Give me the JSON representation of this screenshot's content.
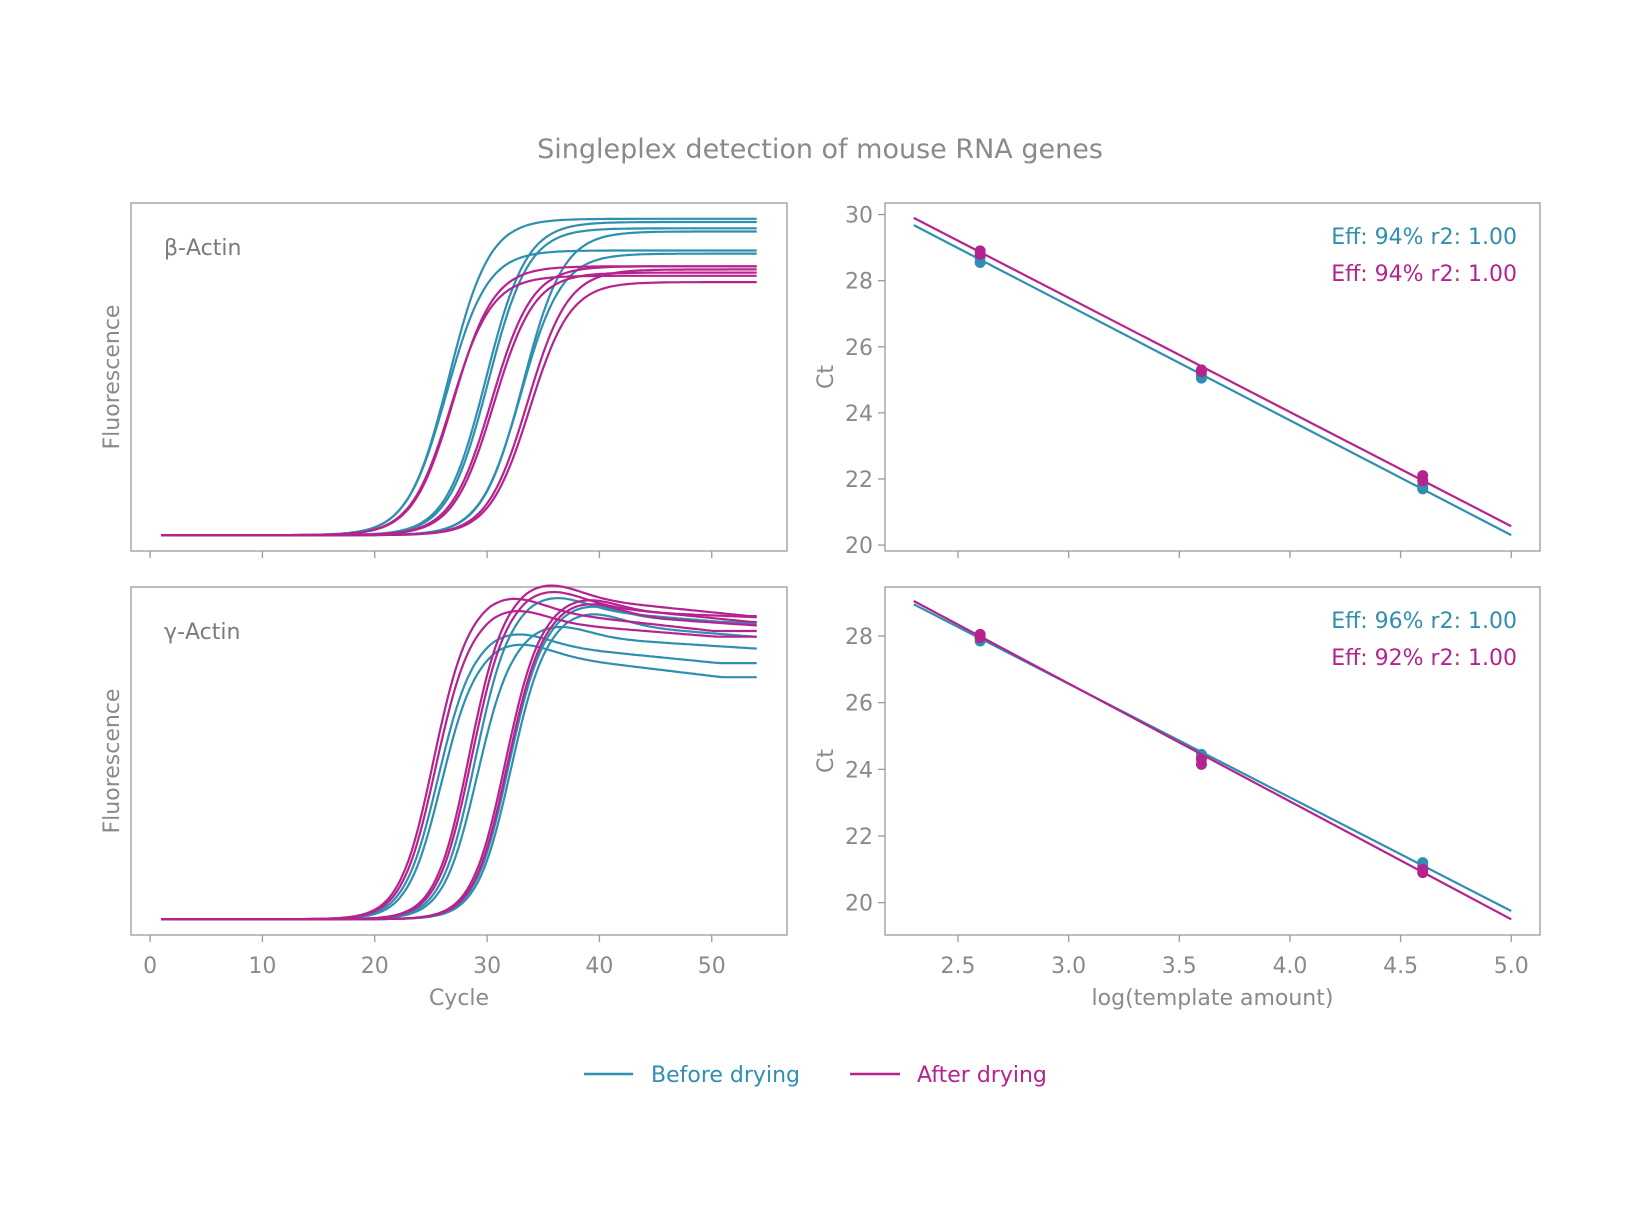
{
  "title": "Singleplex detection of mouse RNA genes",
  "colors": {
    "before": "#2f8fb0",
    "after": "#b5238e",
    "text": "#8a8a8a",
    "axis": "#9a9a9a"
  },
  "legend": {
    "position": "bottom-center",
    "items": [
      {
        "key": "before",
        "label": "Before drying"
      },
      {
        "key": "after",
        "label": "After drying"
      }
    ]
  },
  "chart_data": [
    {
      "type": "line",
      "panel_label": "β-Actin",
      "xlabel": "",
      "ylabel": "Fluorescence",
      "xlim": [
        -1.7,
        56.7
      ],
      "ylim": [
        -0.05,
        1.05
      ],
      "xticks": [
        0,
        10,
        20,
        30,
        40,
        50
      ],
      "show_tick_labels": false,
      "grid": false,
      "cycles": [
        1,
        54
      ],
      "curve_model": "sigmoid",
      "series": [
        {
          "key": "before",
          "curves": [
            {
              "midpoint": 26.6,
              "slope": 1.8,
              "plateau": 1.0,
              "drift": 0
            },
            {
              "midpoint": 26.4,
              "slope": 1.8,
              "plateau": 0.9,
              "drift": 0
            },
            {
              "midpoint": 29.9,
              "slope": 1.8,
              "plateau": 0.99,
              "drift": 0
            },
            {
              "midpoint": 30.1,
              "slope": 1.8,
              "plateau": 0.97,
              "drift": 0
            },
            {
              "midpoint": 33.2,
              "slope": 1.8,
              "plateau": 0.96,
              "drift": 0
            },
            {
              "midpoint": 33.0,
              "slope": 1.8,
              "plateau": 0.89,
              "drift": 0
            }
          ]
        },
        {
          "key": "after",
          "curves": [
            {
              "midpoint": 27.0,
              "slope": 1.8,
              "plateau": 0.85,
              "drift": 0
            },
            {
              "midpoint": 26.8,
              "slope": 1.8,
              "plateau": 0.82,
              "drift": 0
            },
            {
              "midpoint": 30.4,
              "slope": 1.8,
              "plateau": 0.85,
              "drift": 0
            },
            {
              "midpoint": 30.6,
              "slope": 1.8,
              "plateau": 0.83,
              "drift": 0
            },
            {
              "midpoint": 33.6,
              "slope": 1.8,
              "plateau": 0.84,
              "drift": 0
            },
            {
              "midpoint": 33.8,
              "slope": 1.8,
              "plateau": 0.8,
              "drift": 0
            }
          ]
        }
      ]
    },
    {
      "type": "line",
      "panel_label": "γ-Actin",
      "xlabel": "Cycle",
      "ylabel": "Fluorescence",
      "xlim": [
        -1.7,
        56.7
      ],
      "ylim": [
        -0.05,
        1.05
      ],
      "xticks": [
        0,
        10,
        20,
        30,
        40,
        50
      ],
      "show_tick_labels": true,
      "grid": false,
      "cycles": [
        1,
        54
      ],
      "curve_model": "sigmoid",
      "series": [
        {
          "key": "before",
          "curves": [
            {
              "midpoint": 25.6,
              "slope": 1.5,
              "plateau": 0.88,
              "drift": 0.08
            },
            {
              "midpoint": 25.9,
              "slope": 1.5,
              "plateau": 0.85,
              "drift": 0.1
            },
            {
              "midpoint": 28.9,
              "slope": 1.5,
              "plateau": 0.99,
              "drift": 0.06
            },
            {
              "midpoint": 29.1,
              "slope": 1.5,
              "plateau": 0.9,
              "drift": 0.05
            },
            {
              "midpoint": 31.9,
              "slope": 1.5,
              "plateau": 0.96,
              "drift": 0.03
            },
            {
              "midpoint": 32.1,
              "slope": 1.5,
              "plateau": 0.94,
              "drift": 0.06
            }
          ]
        },
        {
          "key": "after",
          "curves": [
            {
              "midpoint": 25.2,
              "slope": 1.5,
              "plateau": 0.99,
              "drift": 0.08
            },
            {
              "midpoint": 25.4,
              "slope": 1.5,
              "plateau": 0.95,
              "drift": 0.06
            },
            {
              "midpoint": 28.4,
              "slope": 1.5,
              "plateau": 1.03,
              "drift": 0.07
            },
            {
              "midpoint": 28.6,
              "slope": 1.5,
              "plateau": 1.01,
              "drift": 0.07
            },
            {
              "midpoint": 31.6,
              "slope": 1.5,
              "plateau": 0.98,
              "drift": 0.03
            },
            {
              "midpoint": 31.8,
              "slope": 1.5,
              "plateau": 0.97,
              "drift": 0.05
            }
          ]
        }
      ]
    },
    {
      "type": "scatter",
      "xlabel": "",
      "ylabel": "Ct",
      "xlim": [
        2.17,
        5.13
      ],
      "ylim": [
        19.82,
        30.35
      ],
      "xticks": [
        2.5,
        3.0,
        3.5,
        4.0,
        4.5,
        5.0
      ],
      "show_tick_labels": false,
      "yticks": [
        20,
        22,
        24,
        26,
        28,
        30
      ],
      "grid": false,
      "series": [
        {
          "key": "before",
          "annotation": "Eff: 94% r2: 1.00",
          "points": {
            "x": [
              2.6,
              2.6,
              3.6,
              3.6,
              4.6,
              4.6
            ],
            "y": [
              28.55,
              28.7,
              25.05,
              25.15,
              21.7,
              21.8
            ]
          },
          "fit": {
            "x": [
              2.3,
              5.0
            ],
            "y": [
              29.68,
              20.3
            ]
          }
        },
        {
          "key": "after",
          "annotation": "Eff: 94% r2: 1.00",
          "points": {
            "x": [
              2.6,
              2.6,
              3.6,
              3.6,
              4.6,
              4.6
            ],
            "y": [
              28.8,
              28.9,
              25.25,
              25.3,
              21.95,
              22.1
            ]
          },
          "fit": {
            "x": [
              2.3,
              5.0
            ],
            "y": [
              29.9,
              20.57
            ]
          }
        }
      ]
    },
    {
      "type": "scatter",
      "xlabel": "log(template amount)",
      "ylabel": "Ct",
      "xlim": [
        2.17,
        5.13
      ],
      "ylim": [
        19.03,
        29.47
      ],
      "xticks": [
        2.5,
        3.0,
        3.5,
        4.0,
        4.5,
        5.0
      ],
      "show_tick_labels": true,
      "yticks": [
        20,
        22,
        24,
        26,
        28
      ],
      "grid": false,
      "series": [
        {
          "key": "before",
          "annotation": "Eff: 96% r2: 1.00",
          "points": {
            "x": [
              2.6,
              2.6,
              3.6,
              3.6,
              4.6,
              4.6
            ],
            "y": [
              27.85,
              27.95,
              24.35,
              24.45,
              21.1,
              21.2
            ]
          },
          "fit": {
            "x": [
              2.3,
              5.0
            ],
            "y": [
              28.95,
              19.75
            ]
          }
        },
        {
          "key": "after",
          "annotation": "Eff: 92% r2: 1.00",
          "points": {
            "x": [
              2.6,
              2.6,
              3.6,
              3.6,
              4.6,
              4.6
            ],
            "y": [
              27.95,
              28.05,
              24.15,
              24.3,
              20.9,
              21.0
            ]
          },
          "fit": {
            "x": [
              2.3,
              5.0
            ],
            "y": [
              29.05,
              19.5
            ]
          }
        }
      ]
    }
  ]
}
